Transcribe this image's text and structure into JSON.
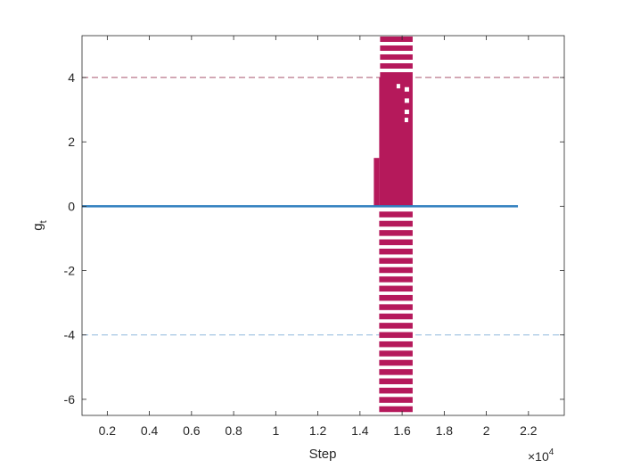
{
  "chart_data": {
    "type": "line",
    "title": "",
    "xlabel": "Step",
    "ylabel": "g",
    "ylabel_subscript": "t",
    "x_exponent_label": "×10",
    "x_exponent_power": "4",
    "xlim": [
      800,
      23700
    ],
    "ylim": [
      -6.5,
      5.3
    ],
    "x_tick_values": [
      2000,
      4000,
      6000,
      8000,
      10000,
      12000,
      14000,
      16000,
      18000,
      20000,
      22000
    ],
    "x_tick_labels": [
      "0.2",
      "0.4",
      "0.6",
      "0.8",
      "1",
      "1.2",
      "1.4",
      "1.6",
      "1.8",
      "2",
      "2.2"
    ],
    "y_tick_values": [
      -6,
      -4,
      -2,
      0,
      2,
      4
    ],
    "y_tick_labels": [
      "-6",
      "-4",
      "-2",
      "0",
      "2",
      "4"
    ],
    "grid": false,
    "legend": false,
    "reference_lines": [
      {
        "y": 4,
        "style": "dashed",
        "color": "#a8556f"
      },
      {
        "y": -4,
        "style": "dashed",
        "color": "#8fb8de"
      }
    ],
    "series": [
      {
        "color": "#2e7ebe",
        "x": [
          800,
          21500
        ],
        "y": [
          0,
          0
        ]
      },
      {
        "color": "#b5195b",
        "x_range": [
          14700,
          16500
        ],
        "y_range": [
          -6.5,
          5.3
        ],
        "description_points": {
          "solid_band_y": [
            0,
            4
          ],
          "stripe_band_y": [
            -6.5,
            5.3
          ]
        }
      }
    ]
  }
}
